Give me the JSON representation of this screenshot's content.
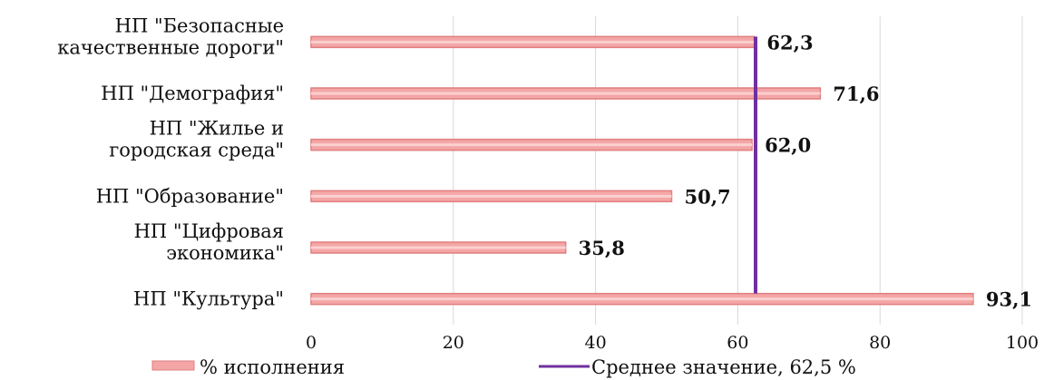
{
  "chart_data": {
    "type": "bar",
    "orientation": "horizontal",
    "categories": [
      [
        "НП \"Безопасные",
        "качественные дороги\""
      ],
      [
        "НП \"Демография\""
      ],
      [
        "НП \"Жилье и",
        "городская среда\""
      ],
      [
        "НП \"Образование\""
      ],
      [
        "НП \"Цифровая",
        "экономика\""
      ],
      [
        "НП \"Культура\""
      ]
    ],
    "values": [
      62.3,
      71.6,
      62.0,
      50.7,
      35.8,
      93.1
    ],
    "value_labels": [
      "62,3",
      "71,6",
      "62,0",
      "50,7",
      "35,8",
      "93,1"
    ],
    "xlim": [
      0,
      100
    ],
    "xticks": [
      0,
      20,
      40,
      60,
      80,
      100
    ],
    "grid": true,
    "average": {
      "value": 62.5
    },
    "legend": {
      "position": "bottom",
      "bar_label": "% исполнения",
      "line_label": "Среднее значение, 62,5 %"
    },
    "colors": {
      "bar_fill": "#f4a6a6",
      "bar_stroke": "#e07f7f",
      "line": "#7030a0",
      "grid": "#d9d9d9"
    }
  }
}
